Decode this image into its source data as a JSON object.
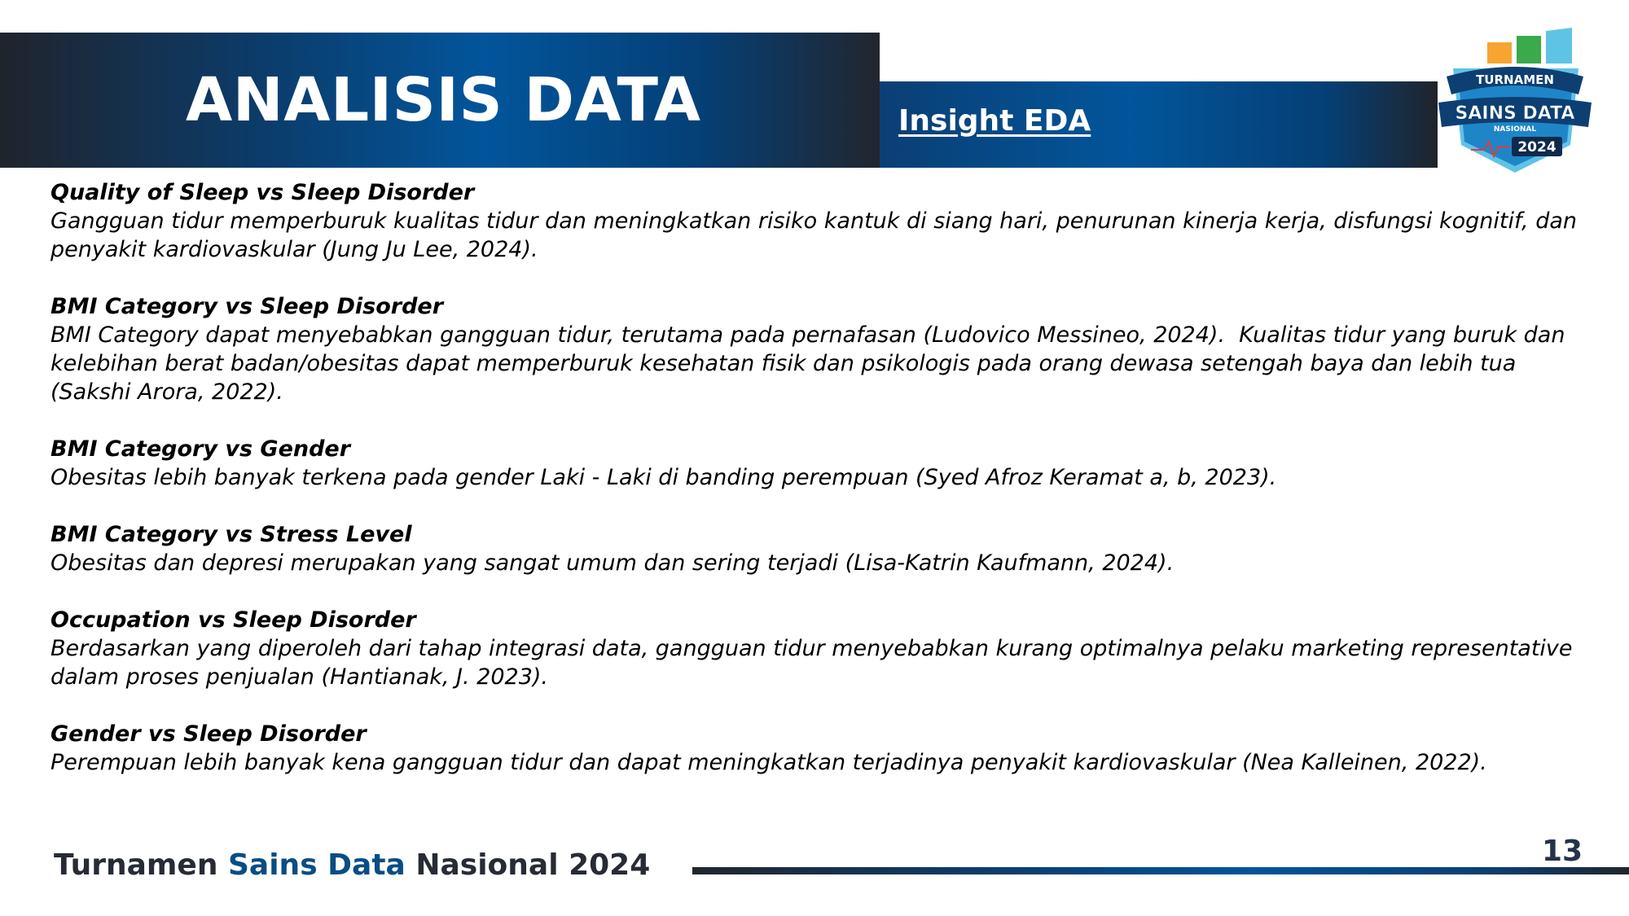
{
  "header": {
    "title": "ANALISIS DATA",
    "subtitle": "Insight EDA"
  },
  "logo": {
    "line1": "TURNAMEN",
    "line2": "SAINS DATA",
    "line3": "NASIONAL",
    "year": "2024",
    "colors": [
      "#f6a531",
      "#3aaa4a",
      "#5fc3e6",
      "#0d3f73"
    ]
  },
  "sections": [
    {
      "title": "Quality of Sleep vs Sleep Disorder",
      "body": "Gangguan tidur memperburuk kualitas tidur dan meningkatkan risiko kantuk di siang hari, penurunan kinerja kerja, disfungsi kognitif, dan penyakit kardiovaskular (Jung Ju Lee, 2024)."
    },
    {
      "title": "BMI Category vs Sleep Disorder",
      "body": "BMI Category dapat menyebabkan gangguan tidur, terutama pada pernafasan (Ludovico Messineo, 2024).  Kualitas tidur yang buruk dan kelebihan berat badan/obesitas dapat memperburuk kesehatan fisik dan psikologis pada orang dewasa setengah baya dan lebih tua (Sakshi Arora, 2022)."
    },
    {
      "title": "BMI Category vs Gender",
      "body": "Obesitas lebih banyak terkena pada gender Laki - Laki di banding perempuan (Syed Afroz Keramat a, b, 2023)."
    },
    {
      "title": "BMI Category vs Stress Level",
      "body": "Obesitas dan depresi merupakan yang sangat umum dan sering terjadi (Lisa-Katrin Kaufmann, 2024)."
    },
    {
      "title": "Occupation vs Sleep Disorder",
      "body": "Berdasarkan yang diperoleh dari tahap integrasi data, gangguan tidur menyebabkan kurang optimalnya pelaku marketing representative dalam proses penjualan (Hantianak, J. 2023)."
    },
    {
      "title": "Gender vs Sleep Disorder",
      "body": "Perempuan lebih banyak kena gangguan tidur dan dapat meningkatkan terjadinya penyakit kardiovaskular (Nea Kalleinen, 2022)."
    }
  ],
  "footer": {
    "part1": "Turnamen ",
    "part2": "Sains Data",
    "part3": " Nasional 2024",
    "page_number": "13"
  }
}
